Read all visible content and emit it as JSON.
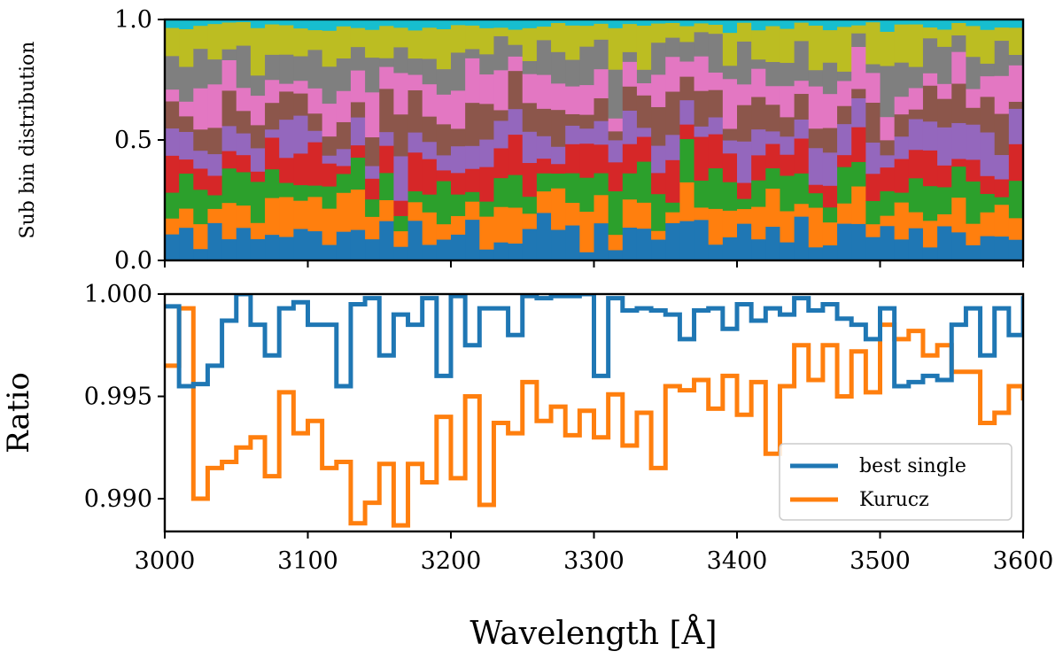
{
  "chart_data": [
    {
      "id": "top",
      "type": "area",
      "stacked": true,
      "ylabel": "Sub bin distribution",
      "xlabel": "",
      "xlim": [
        3000,
        3600
      ],
      "ylim": [
        0.0,
        1.0
      ],
      "x_ticks": [
        3000,
        3100,
        3200,
        3300,
        3400,
        3500,
        3600
      ],
      "y_ticks": [
        0.0,
        0.5,
        1.0
      ],
      "y_tick_labels": [
        "0.0",
        "0.5",
        "1.0"
      ],
      "n_bins": 60,
      "n_sub_bins": 10,
      "colors": [
        "#1f77b4",
        "#ff7f0e",
        "#2ca02c",
        "#d62728",
        "#9467bd",
        "#8c564b",
        "#e377c2",
        "#7f7f7f",
        "#bcbd22",
        "#17becf"
      ],
      "legend": "none"
    },
    {
      "id": "bottom",
      "type": "line",
      "step": true,
      "ylabel": "Ratio",
      "xlabel": "Wavelength [Å]",
      "xlim": [
        3000,
        3600
      ],
      "ylim": [
        0.9884,
        1.0
      ],
      "x_ticks": [
        3000,
        3100,
        3200,
        3300,
        3400,
        3500,
        3600
      ],
      "x_tick_labels": [
        "3000",
        "3100",
        "3200",
        "3300",
        "3400",
        "3500",
        "3600"
      ],
      "y_ticks": [
        0.99,
        0.995,
        1.0
      ],
      "y_tick_labels": [
        "0.990",
        "0.995",
        "1.000"
      ],
      "x_edges": [
        3000,
        3010,
        3020,
        3030,
        3040,
        3050,
        3060,
        3070,
        3080,
        3090,
        3100,
        3110,
        3120,
        3130,
        3140,
        3150,
        3160,
        3170,
        3180,
        3190,
        3200,
        3210,
        3220,
        3230,
        3240,
        3250,
        3260,
        3270,
        3280,
        3290,
        3300,
        3310,
        3320,
        3330,
        3340,
        3350,
        3360,
        3370,
        3380,
        3390,
        3400,
        3410,
        3420,
        3430,
        3440,
        3450,
        3460,
        3470,
        3480,
        3490,
        3500,
        3510,
        3520,
        3530,
        3540,
        3550,
        3560,
        3570,
        3580,
        3590,
        3600
      ],
      "legend_position": "lower-right",
      "series": [
        {
          "name": "best single",
          "color": "#1f77b4",
          "values": [
            0.9994,
            0.9955,
            0.9956,
            0.9965,
            0.9987,
            1.0,
            0.9985,
            0.997,
            0.9993,
            0.9996,
            0.9985,
            0.9985,
            0.9955,
            0.9995,
            0.9998,
            0.997,
            0.999,
            0.9985,
            0.9998,
            0.996,
            0.9999,
            0.9975,
            0.9993,
            0.9993,
            0.998,
            0.9999,
            0.9998,
            0.9999,
            0.9999,
            1.0,
            0.996,
            0.9998,
            0.9992,
            0.9993,
            0.9992,
            0.999,
            0.9978,
            0.9992,
            0.9993,
            0.9983,
            0.9995,
            0.9987,
            0.9993,
            0.999,
            0.9998,
            0.9992,
            0.9995,
            0.9988,
            0.9985,
            0.9978,
            0.9993,
            0.9955,
            0.9957,
            0.996,
            0.9958,
            0.9985,
            0.9993,
            0.997,
            0.9993,
            0.998,
            0.9999
          ]
        },
        {
          "name": "Kurucz",
          "color": "#ff7f0e",
          "values": [
            0.9965,
            0.9993,
            0.99,
            0.9915,
            0.9918,
            0.9925,
            0.993,
            0.9911,
            0.9952,
            0.9932,
            0.9938,
            0.9915,
            0.9918,
            0.9888,
            0.9898,
            0.9917,
            0.9887,
            0.9917,
            0.9908,
            0.994,
            0.991,
            0.995,
            0.9897,
            0.9937,
            0.9932,
            0.9957,
            0.9938,
            0.9945,
            0.9931,
            0.9943,
            0.993,
            0.9951,
            0.9926,
            0.9942,
            0.9915,
            0.9955,
            0.9953,
            0.9958,
            0.9944,
            0.996,
            0.9941,
            0.9957,
            0.9922,
            0.9955,
            0.9975,
            0.9958,
            0.9975,
            0.995,
            0.9972,
            0.9952,
            0.9985,
            0.9978,
            0.9982,
            0.997,
            0.9975,
            0.9962,
            0.9962,
            0.9937,
            0.9942,
            0.9955,
            0.9948
          ]
        }
      ]
    }
  ]
}
